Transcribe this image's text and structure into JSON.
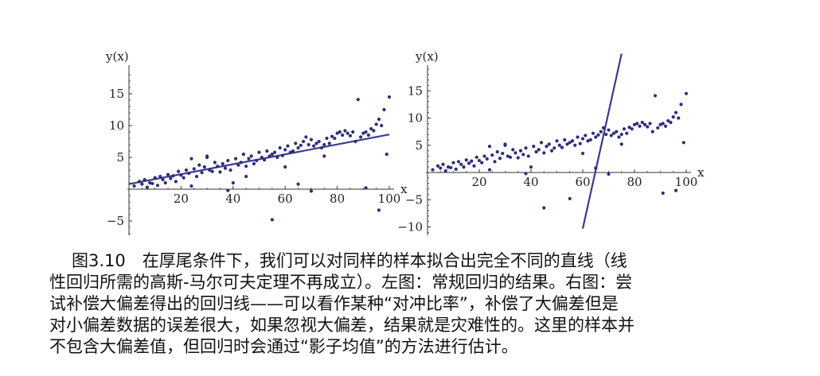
{
  "chart_data": [
    {
      "type": "scatter",
      "xlabel": "x",
      "ylabel": "y(x)",
      "xlim": [
        0,
        100
      ],
      "ylim": [
        -7,
        18
      ],
      "xticks": [
        20,
        40,
        60,
        80,
        100
      ],
      "yticks": [
        -5,
        5,
        10,
        15
      ],
      "tick_labels": {
        "x": [
          "20",
          "40",
          "60",
          "80",
          "100"
        ],
        "y": [
          "−5",
          "5",
          "10",
          "15"
        ]
      },
      "fit_line": {
        "x": [
          0,
          100
        ],
        "y": [
          0.8,
          8.6
        ]
      },
      "series": [
        {
          "x": [
            2,
            4,
            5,
            6,
            7,
            8,
            9,
            10,
            11,
            12,
            13,
            14,
            15,
            16,
            17,
            18,
            19,
            20,
            21,
            22,
            23,
            24,
            25,
            26,
            27,
            28,
            29,
            30,
            31,
            32,
            33,
            34,
            35,
            36,
            37,
            38,
            39,
            40,
            41,
            42,
            43,
            44,
            45,
            46,
            47,
            48,
            49,
            50,
            51,
            52,
            53,
            54,
            55,
            56,
            57,
            58,
            59,
            60,
            61,
            62,
            63,
            64,
            65,
            66,
            67,
            68,
            69,
            70,
            71,
            72,
            73,
            74,
            75,
            76,
            77,
            78,
            79,
            80,
            81,
            82,
            83,
            84,
            85,
            86,
            87,
            88,
            89,
            90,
            91,
            92,
            93,
            94,
            95,
            96,
            97,
            98,
            99,
            100,
            24,
            30,
            38,
            45,
            55,
            60,
            65,
            70,
            75,
            91,
            96
          ],
          "y": [
            0.5,
            1.2,
            0.8,
            1.5,
            0.3,
            1.0,
            0.9,
            1.8,
            0.6,
            2.0,
            1.5,
            1.0,
            2.3,
            1.7,
            2.1,
            1.2,
            2.8,
            2.2,
            1.8,
            3.0,
            2.5,
            4.8,
            3.2,
            2.0,
            3.8,
            2.6,
            3.5,
            5.0,
            3.0,
            2.8,
            4.2,
            3.6,
            2.7,
            4.0,
            3.3,
            4.5,
            3.0,
            1.0,
            4.8,
            3.8,
            4.2,
            5.5,
            3.6,
            4.8,
            5.2,
            4.0,
            4.5,
            5.8,
            5.0,
            4.6,
            6.0,
            5.2,
            5.5,
            5.8,
            5.0,
            6.5,
            5.3,
            6.2,
            6.8,
            5.8,
            6.0,
            7.2,
            6.5,
            6.9,
            7.5,
            8.2,
            7.0,
            7.8,
            6.8,
            7.2,
            7.5,
            6.5,
            7.0,
            8.0,
            7.2,
            8.3,
            8.0,
            8.8,
            9.0,
            8.5,
            9.2,
            8.8,
            8.4,
            9.0,
            7.5,
            14.1,
            8.2,
            8.8,
            9.0,
            8.5,
            9.5,
            9.2,
            10.2,
            11.0,
            10.0,
            12.5,
            5.5,
            14.5,
            0.5,
            5.2,
            -0.2,
            2.0,
            -4.8,
            3.5,
            0.8,
            -0.3,
            5.2,
            0.2,
            -3.3
          ]
        }
      ]
    },
    {
      "type": "scatter",
      "xlabel": "x",
      "ylabel": "y(x)",
      "xlim": [
        0,
        100
      ],
      "ylim": [
        -11,
        23
      ],
      "xticks": [
        20,
        40,
        60,
        80,
        100
      ],
      "yticks": [
        -10,
        -5,
        5,
        10,
        15
      ],
      "tick_labels": {
        "x": [
          "20",
          "40",
          "60",
          "80",
          "100"
        ],
        "y": [
          "−10",
          "−5",
          "5",
          "10",
          "15"
        ]
      },
      "fit_line": {
        "x": [
          60,
          75
        ],
        "y": [
          -10.3,
          21.8
        ]
      },
      "series": [
        {
          "x": [
            2,
            4,
            5,
            6,
            7,
            8,
            9,
            10,
            11,
            12,
            13,
            14,
            15,
            16,
            17,
            18,
            19,
            20,
            21,
            22,
            23,
            24,
            25,
            26,
            27,
            28,
            29,
            30,
            31,
            32,
            33,
            34,
            35,
            36,
            37,
            38,
            39,
            40,
            41,
            42,
            43,
            44,
            45,
            46,
            47,
            48,
            49,
            50,
            51,
            52,
            53,
            54,
            55,
            56,
            57,
            58,
            59,
            60,
            61,
            62,
            63,
            64,
            65,
            66,
            67,
            68,
            69,
            70,
            71,
            72,
            73,
            74,
            75,
            76,
            77,
            78,
            79,
            80,
            81,
            82,
            83,
            84,
            85,
            86,
            87,
            88,
            89,
            90,
            91,
            92,
            93,
            94,
            95,
            96,
            97,
            98,
            99,
            100,
            24,
            30,
            38,
            45,
            55,
            60,
            65,
            70,
            75,
            91,
            96
          ],
          "y": [
            0.5,
            1.2,
            0.8,
            1.5,
            0.3,
            1.0,
            0.9,
            1.8,
            0.6,
            2.0,
            1.5,
            1.0,
            2.3,
            1.7,
            2.1,
            1.2,
            2.8,
            2.2,
            1.8,
            3.0,
            2.5,
            4.8,
            3.2,
            2.0,
            3.8,
            2.6,
            3.5,
            5.0,
            3.0,
            2.8,
            4.2,
            3.6,
            2.7,
            4.0,
            3.3,
            4.5,
            3.0,
            1.0,
            4.8,
            3.8,
            4.2,
            5.5,
            3.6,
            4.8,
            5.2,
            4.0,
            4.5,
            5.8,
            5.0,
            4.6,
            6.0,
            5.2,
            5.5,
            5.8,
            5.0,
            6.5,
            5.3,
            6.2,
            6.8,
            5.8,
            6.0,
            7.2,
            6.5,
            6.9,
            7.5,
            8.2,
            7.0,
            7.8,
            6.8,
            7.2,
            7.5,
            6.5,
            7.0,
            8.0,
            7.2,
            8.3,
            8.0,
            8.8,
            9.0,
            8.5,
            9.2,
            8.8,
            8.4,
            9.0,
            7.5,
            14.1,
            8.2,
            8.8,
            9.0,
            8.5,
            9.5,
            9.2,
            10.2,
            11.0,
            10.0,
            12.5,
            5.5,
            14.5,
            0.5,
            5.2,
            -0.2,
            -6.5,
            -4.8,
            3.5,
            0.8,
            -0.3,
            5.2,
            -3.8,
            -3.3
          ]
        }
      ]
    }
  ],
  "caption": {
    "lines": [
      "图3.10　在厚尾条件下，我们可以对同样的样本拟合出完全不同的直线（线",
      "性回归所需的高斯-马尔可夫定理不再成立）。左图：常规回归的结果。右图：尝",
      "试补偿大偏差得出的回归线——可以看作某种“对冲比率”，补偿了大偏差但是",
      "对小偏差数据的误差很大，如果忽视大偏差，结果就是灾难性的。这里的样本并",
      "不包含大偏差值，但回归时会通过“影子均值”的方法进行估计。"
    ]
  },
  "colors": {
    "points": "#2e2e7a",
    "line": "#3b3b8f",
    "axis": "#333333"
  }
}
